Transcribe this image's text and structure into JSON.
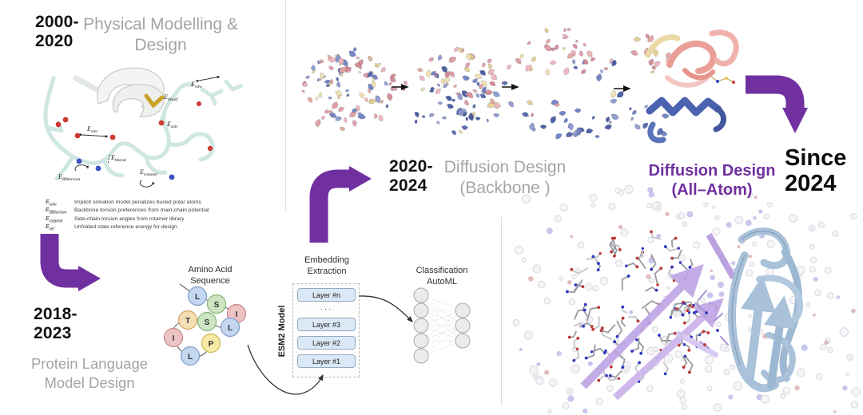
{
  "colors": {
    "arrow_purple": "#7030A0",
    "era_title_gray": "#a5a5a5",
    "highlight_purple": "#7030A0"
  },
  "timeline": {
    "era1": {
      "years": "2000-\n2020",
      "title": "Physical Modelling & Design"
    },
    "era2": {
      "years": "2018-\n2023",
      "title": "Protein Language Model Design"
    },
    "era3": {
      "years": "2020-\n2024",
      "title": "Diffusion Design\n(Backbone )"
    },
    "era4": {
      "years": "Since\n2024",
      "title": "Diffusion Design\n(All–Atom)"
    }
  },
  "physical_figure": {
    "energy_labels": [
      {
        "base": "E",
        "sub": "disulf"
      },
      {
        "base": "E",
        "sub": "vdw"
      },
      {
        "base": "E",
        "sub": "solv"
      },
      {
        "base": "E",
        "sub": "elec"
      },
      {
        "base": "E",
        "sub": "hbond"
      },
      {
        "base": "E",
        "sub": "rotamer"
      },
      {
        "base": "E",
        "sub": "BBtorsion"
      }
    ],
    "legend": [
      {
        "base": "E",
        "sub": "solv",
        "desc": "Implicit solvation model penalizes buried polar atoms"
      },
      {
        "base": "E",
        "sub": "BBtorsion",
        "desc": "Backbone torsion preferences from main-chain potential"
      },
      {
        "base": "E",
        "sub": "rotamer",
        "desc": "Side-chain torsion angles from rotamer library"
      },
      {
        "base": "E",
        "sub": "ref",
        "desc": "Unfolded state reference energy for design"
      }
    ]
  },
  "plm_figure": {
    "sequence_title": "Amino Acid\nSequence",
    "residues": [
      {
        "letter": "L",
        "fill": "#c3d7f0",
        "stroke": "#7f9cc6"
      },
      {
        "letter": "S",
        "fill": "#cde5c2",
        "stroke": "#85b377"
      },
      {
        "letter": "I",
        "fill": "#eec3c3",
        "stroke": "#c98787"
      },
      {
        "letter": "L",
        "fill": "#c3d7f0",
        "stroke": "#7f9cc6"
      },
      {
        "letter": "S",
        "fill": "#cde5c2",
        "stroke": "#85b377"
      },
      {
        "letter": "T",
        "fill": "#f6deb4",
        "stroke": "#cfa45f"
      },
      {
        "letter": "I",
        "fill": "#eec3c3",
        "stroke": "#c98787"
      },
      {
        "letter": "L",
        "fill": "#c3d7f0",
        "stroke": "#7f9cc6"
      },
      {
        "letter": "P",
        "fill": "#f6eaa6",
        "stroke": "#c9b755"
      }
    ],
    "model_label": "ESM2 Model",
    "embedding_title": "Embedding\nExtraction",
    "layers": [
      "Layer #n",
      "···",
      "Layer #3",
      "Layer #2",
      "Layer #1"
    ],
    "classification_title": "Classification\nAutoML"
  }
}
